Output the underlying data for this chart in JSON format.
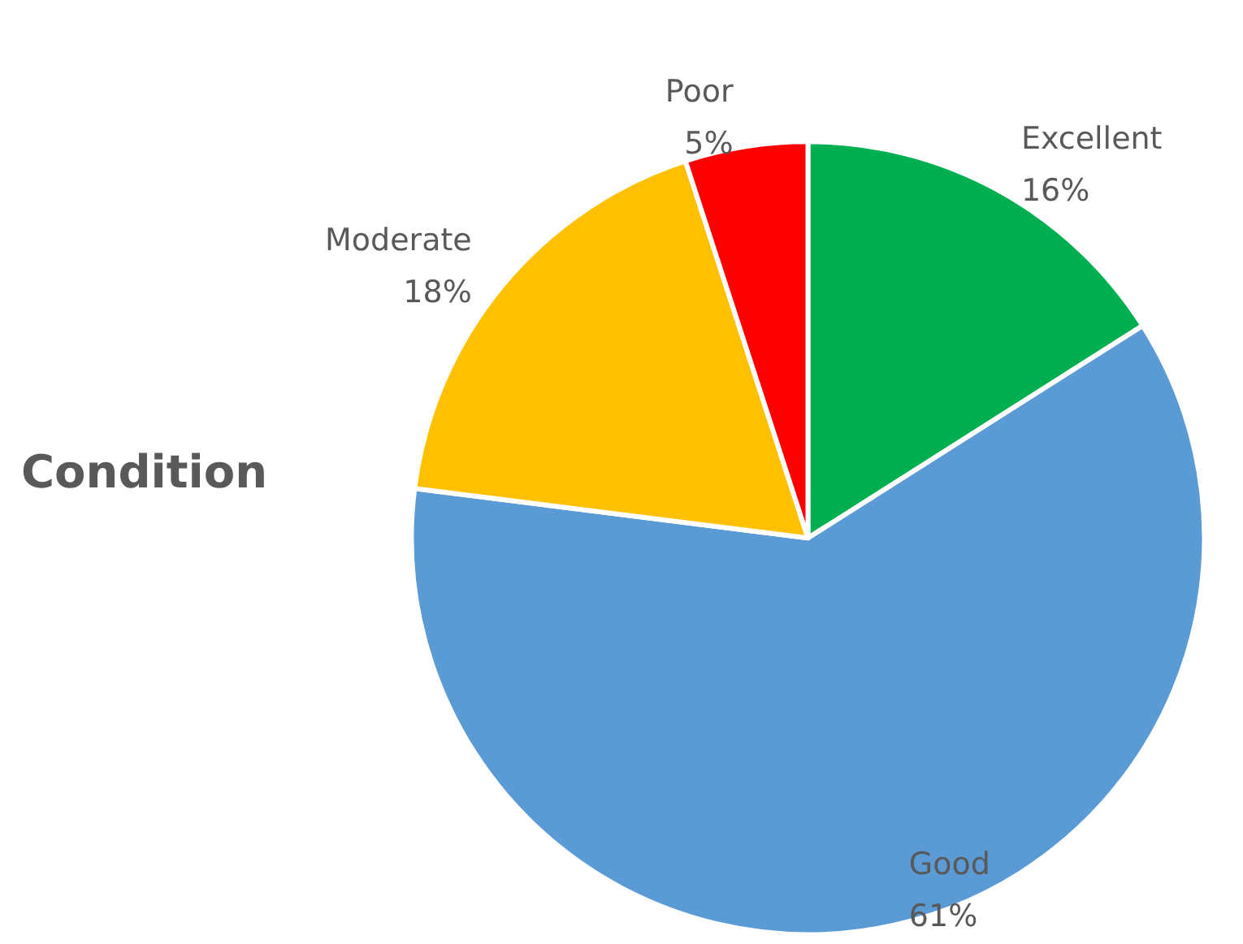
{
  "chart_data": {
    "type": "pie",
    "title": "Condition",
    "categories": [
      "Excellent",
      "Good",
      "Moderate",
      "Poor"
    ],
    "values": [
      16,
      61,
      18,
      5
    ],
    "value_labels": [
      "16%",
      "61%",
      "18%",
      "5%"
    ],
    "colors": [
      "#00b050",
      "#5b9bd5",
      "#ffc000",
      "#ff0000"
    ]
  }
}
